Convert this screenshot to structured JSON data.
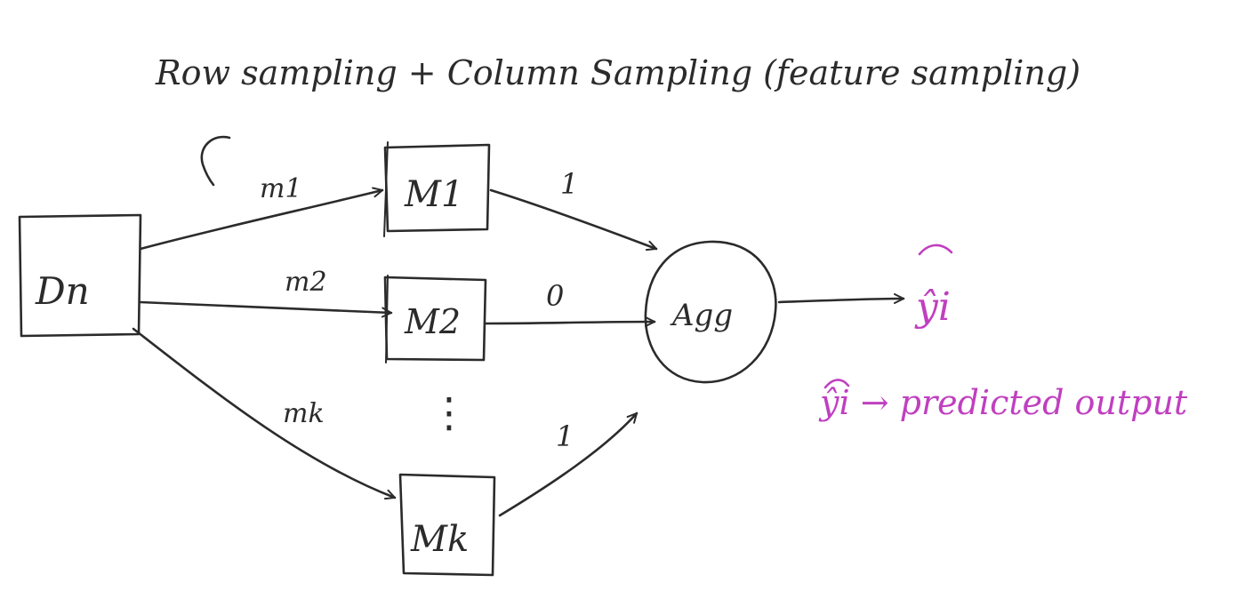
{
  "title": "Row sampling + Column Sampling (feature sampling)",
  "source_node": {
    "label": "Dn"
  },
  "models": [
    {
      "id": "m1",
      "label": "M1",
      "edge_label": "m1",
      "output_vote": "1"
    },
    {
      "id": "m2",
      "label": "M2",
      "edge_label": "m2",
      "output_vote": "0"
    },
    {
      "id": "mk",
      "label": "Mk",
      "edge_label": "mk",
      "output_vote": "1"
    }
  ],
  "ellipsis": "⋮",
  "aggregator": {
    "label": "Agg"
  },
  "output": {
    "label": "ŷi"
  },
  "legend": {
    "text": "ŷi → predicted output"
  },
  "colors": {
    "ink": "#2b2b2b",
    "highlight": "#c03fc0"
  }
}
